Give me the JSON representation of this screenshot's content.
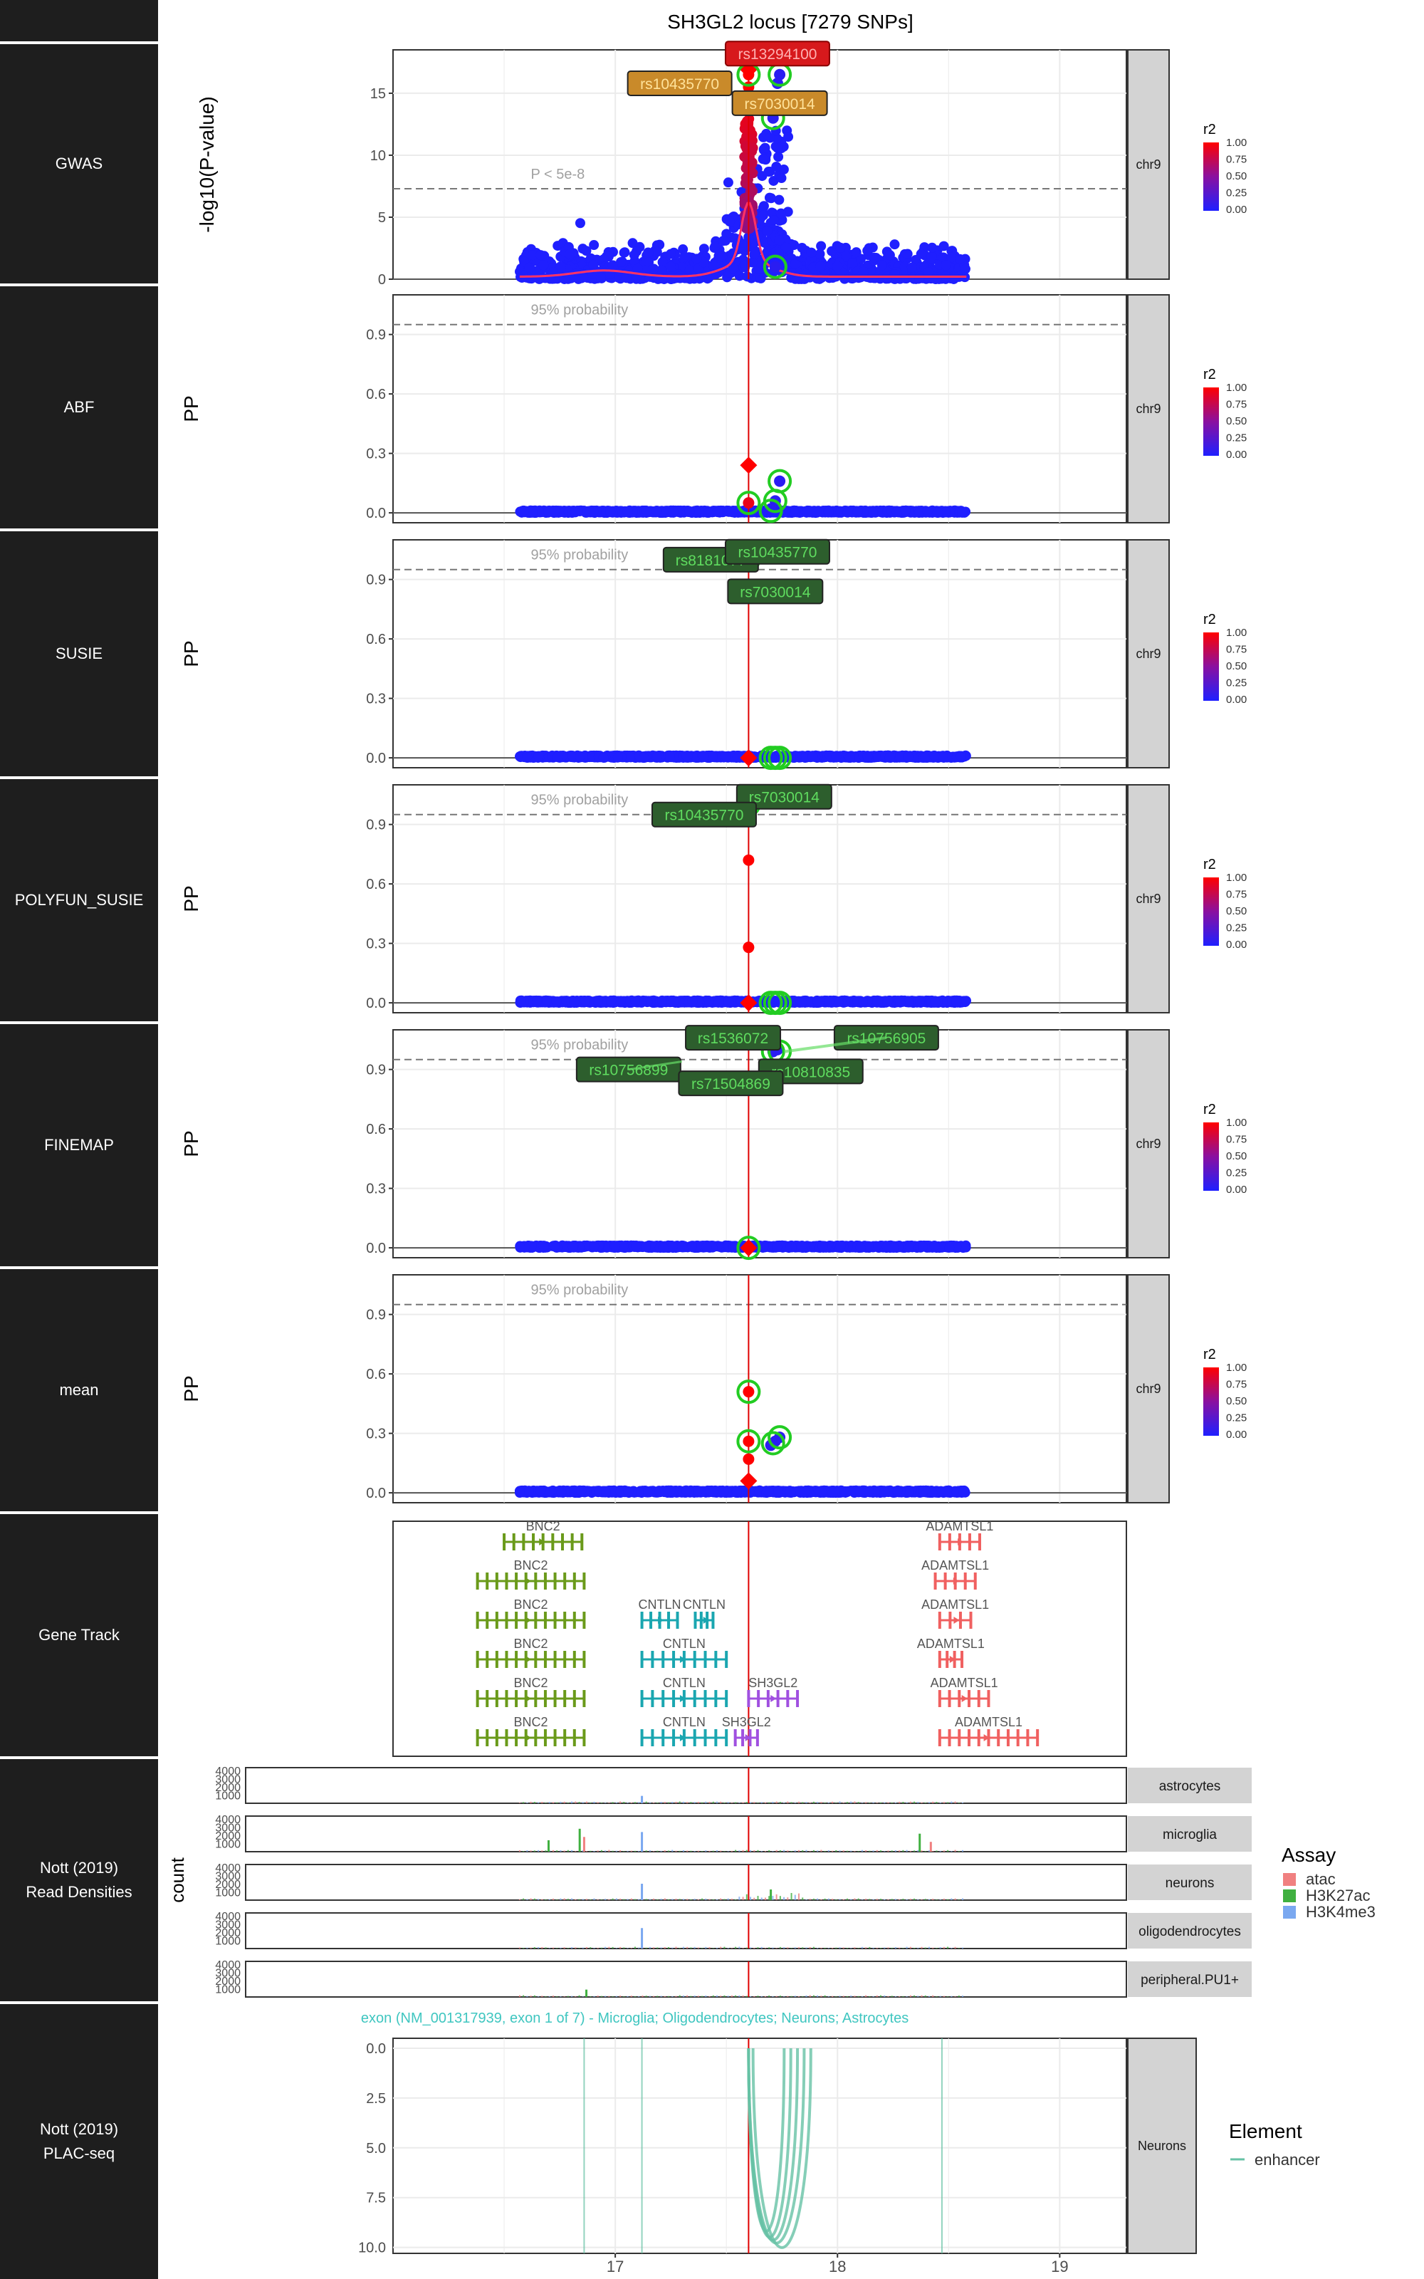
{
  "title": "SH3GL2 locus [7279 SNPs]",
  "row_labels": [
    "GWAS",
    "ABF",
    "SUSIE",
    "POLYFUN_SUSIE",
    "FINEMAP",
    "mean",
    "Gene Track",
    "Nott (2019)\nRead Densities",
    "Nott (2019)\nPLAC-seq"
  ],
  "chart_data": [
    {
      "type": "scatter",
      "panel": "GWAS",
      "strip": "chr9",
      "ylabel": "-log10(P-value)",
      "ylim": [
        0,
        18.5
      ],
      "yticks": [
        0,
        5,
        10,
        15
      ],
      "threshold": {
        "value": 7.3,
        "label": "P < 5e-8"
      },
      "legend_title": "r2",
      "legend_ticks": [
        "1.00",
        "0.75",
        "0.50",
        "0.25",
        "0.00"
      ],
      "labels": [
        {
          "text": "rs13294100",
          "x": 17.73,
          "y": 18.2,
          "color": "#d7191c"
        },
        {
          "text": "rs10435770",
          "x": 17.29,
          "y": 15.8,
          "color": "#f0a030"
        },
        {
          "text": "rs7030014",
          "x": 17.74,
          "y": 14.2,
          "color": "#f0a030"
        }
      ],
      "lead": [
        {
          "x": 17.6,
          "y": 16.5,
          "r2": 1.0
        },
        {
          "x": 17.6,
          "y": 15.5,
          "r2": 1.0
        },
        {
          "x": 17.6,
          "y": 14.5,
          "r2": 0.95
        },
        {
          "x": 17.74,
          "y": 16.5,
          "r2": 0.05
        },
        {
          "x": 17.73,
          "y": 15.8,
          "r2": 0.05
        },
        {
          "x": 17.71,
          "y": 13.0,
          "r2": 0.05
        },
        {
          "x": 17.72,
          "y": 1.0,
          "r2": 0.05
        }
      ],
      "circled": [
        [
          17.6,
          16.5
        ],
        [
          17.74,
          16.5
        ],
        [
          17.71,
          13.0
        ],
        [
          17.72,
          1.0
        ]
      ],
      "diamond": [
        17.6,
        16.9
      ]
    },
    {
      "type": "scatter",
      "panel": "ABF",
      "strip": "chr9",
      "ylabel": "PP",
      "ylim": [
        -0.05,
        1.1
      ],
      "yticks": [
        0.0,
        0.3,
        0.6,
        0.9
      ],
      "threshold": {
        "value": 0.95,
        "label": "95% probability"
      },
      "legend_title": "r2",
      "legend_ticks": [
        "1.00",
        "0.75",
        "0.50",
        "0.25",
        "0.00"
      ],
      "labels": [],
      "lead": [
        {
          "x": 17.6,
          "y": 0.05,
          "r2": 0.9
        },
        {
          "x": 17.74,
          "y": 0.16,
          "r2": 0.05
        },
        {
          "x": 17.72,
          "y": 0.06,
          "r2": 0.05
        },
        {
          "x": 17.7,
          "y": 0.02,
          "r2": 0.05
        }
      ],
      "circled": [
        [
          17.6,
          0.05
        ],
        [
          17.74,
          0.16
        ],
        [
          17.72,
          0.06
        ],
        [
          17.7,
          0.01
        ]
      ],
      "diamond": [
        17.6,
        0.24
      ]
    },
    {
      "type": "scatter",
      "panel": "SUSIE",
      "strip": "chr9",
      "ylabel": "PP",
      "ylim": [
        -0.05,
        1.1
      ],
      "yticks": [
        0.0,
        0.3,
        0.6,
        0.9
      ],
      "threshold": {
        "value": 0.95,
        "label": "95% probability"
      },
      "legend_title": "r2",
      "legend_ticks": [
        "1.00",
        "0.75",
        "0.50",
        "0.25",
        "0.00"
      ],
      "labels": [
        {
          "text": "rs8181077",
          "x": 17.43,
          "y": 1.0,
          "color": "#3c8c3c"
        },
        {
          "text": "rs10435770",
          "x": 17.73,
          "y": 1.04,
          "color": "#3c8c3c"
        },
        {
          "text": "rs7030014",
          "x": 17.72,
          "y": 0.84,
          "color": "#3c8c3c"
        }
      ],
      "lead": [
        {
          "x": 17.6,
          "y": 1.0,
          "r2": 1.0
        }
      ],
      "circled": [
        [
          17.6,
          1.0
        ],
        [
          17.7,
          0.0
        ],
        [
          17.72,
          0.0
        ],
        [
          17.74,
          0.0
        ]
      ],
      "diamond": [
        17.6,
        0.0
      ]
    },
    {
      "type": "scatter",
      "panel": "POLYFUN_SUSIE",
      "strip": "chr9",
      "ylabel": "PP",
      "ylim": [
        -0.05,
        1.1
      ],
      "yticks": [
        0.0,
        0.3,
        0.6,
        0.9
      ],
      "threshold": {
        "value": 0.95,
        "label": "95% probability"
      },
      "legend_title": "r2",
      "legend_ticks": [
        "1.00",
        "0.75",
        "0.50",
        "0.25",
        "0.00"
      ],
      "labels": [
        {
          "text": "rs7030014",
          "x": 17.76,
          "y": 1.04,
          "color": "#3c8c3c"
        },
        {
          "text": "rs10435770",
          "x": 17.4,
          "y": 0.95,
          "color": "#3c8c3c"
        }
      ],
      "lead": [
        {
          "x": 17.6,
          "y": 1.0,
          "r2": 1.0
        },
        {
          "x": 17.6,
          "y": 0.72,
          "r2": 1.0
        },
        {
          "x": 17.6,
          "y": 0.28,
          "r2": 1.0
        }
      ],
      "circled": [
        [
          17.6,
          1.0
        ],
        [
          17.7,
          0.0
        ],
        [
          17.72,
          0.0
        ],
        [
          17.74,
          0.0
        ]
      ],
      "diamond": [
        17.6,
        0.0
      ]
    },
    {
      "type": "scatter",
      "panel": "FINEMAP",
      "strip": "chr9",
      "ylabel": "PP",
      "ylim": [
        -0.05,
        1.1
      ],
      "yticks": [
        0.0,
        0.3,
        0.6,
        0.9
      ],
      "threshold": {
        "value": 0.95,
        "label": "95% probability"
      },
      "legend_title": "r2",
      "legend_ticks": [
        "1.00",
        "0.75",
        "0.50",
        "0.25",
        "0.00"
      ],
      "labels": [
        {
          "text": "rs1536072",
          "x": 17.53,
          "y": 1.06,
          "color": "#3c8c3c"
        },
        {
          "text": "rs10756905",
          "x": 18.22,
          "y": 1.06,
          "color": "#3c8c3c"
        },
        {
          "text": "rs10756899",
          "x": 17.06,
          "y": 0.9,
          "color": "#3c8c3c"
        },
        {
          "text": "rs10810835",
          "x": 17.88,
          "y": 0.89,
          "color": "#3c8c3c"
        },
        {
          "text": "rs71504869",
          "x": 17.52,
          "y": 0.83,
          "color": "#3c8c3c"
        }
      ],
      "lead": [
        {
          "x": 17.73,
          "y": 1.0,
          "r2": 0.05
        },
        {
          "x": 17.71,
          "y": 0.99,
          "r2": 0.05
        }
      ],
      "circled": [
        [
          17.71,
          0.99
        ],
        [
          17.74,
          0.99
        ],
        [
          17.6,
          0.0
        ]
      ],
      "diamond": [
        17.6,
        0.0
      ]
    },
    {
      "type": "scatter",
      "panel": "mean",
      "strip": "chr9",
      "ylabel": "PP",
      "ylim": [
        -0.05,
        1.1
      ],
      "yticks": [
        0.0,
        0.3,
        0.6,
        0.9
      ],
      "threshold": {
        "value": 0.95,
        "label": "95% probability"
      },
      "legend_title": "r2",
      "legend_ticks": [
        "1.00",
        "0.75",
        "0.50",
        "0.25",
        "0.00"
      ],
      "labels": [],
      "lead": [
        {
          "x": 17.6,
          "y": 0.51,
          "r2": 1.0
        },
        {
          "x": 17.6,
          "y": 0.26,
          "r2": 1.0
        },
        {
          "x": 17.6,
          "y": 0.17,
          "r2": 1.0
        },
        {
          "x": 17.74,
          "y": 0.28,
          "r2": 0.05
        },
        {
          "x": 17.72,
          "y": 0.26,
          "r2": 0.05
        },
        {
          "x": 17.7,
          "y": 0.24,
          "r2": 0.05
        }
      ],
      "circled": [
        [
          17.6,
          0.51
        ],
        [
          17.6,
          0.26
        ],
        [
          17.74,
          0.28
        ],
        [
          17.71,
          0.25
        ]
      ],
      "diamond": [
        17.6,
        0.06
      ]
    },
    {
      "type": "gene_track",
      "panel": "Gene Track",
      "genes": [
        {
          "name": "BNC2",
          "lane": 0,
          "start": 16.5,
          "end": 16.85,
          "color": "#6a9a1a"
        },
        {
          "name": "ADAMTSL1",
          "lane": 0,
          "start": 18.46,
          "end": 18.64,
          "color": "#f06060"
        },
        {
          "name": "BNC2",
          "lane": 1,
          "start": 16.38,
          "end": 16.86,
          "color": "#6a9a1a"
        },
        {
          "name": "ADAMTSL1",
          "lane": 1,
          "start": 18.44,
          "end": 18.62,
          "color": "#f06060"
        },
        {
          "name": "BNC2",
          "lane": 2,
          "start": 16.38,
          "end": 16.86,
          "color": "#6a9a1a"
        },
        {
          "name": "CNTLN",
          "lane": 2,
          "start": 17.12,
          "end": 17.28,
          "color": "#1aa6b0"
        },
        {
          "name": "CNTLN",
          "lane": 2,
          "start": 17.36,
          "end": 17.44,
          "color": "#1aa6b0"
        },
        {
          "name": "ADAMTSL1",
          "lane": 2,
          "start": 18.46,
          "end": 18.6,
          "color": "#f06060"
        },
        {
          "name": "BNC2",
          "lane": 3,
          "start": 16.38,
          "end": 16.86,
          "color": "#6a9a1a"
        },
        {
          "name": "CNTLN",
          "lane": 3,
          "start": 17.12,
          "end": 17.5,
          "color": "#1aa6b0"
        },
        {
          "name": "ADAMTSL1",
          "lane": 3,
          "start": 18.46,
          "end": 18.56,
          "color": "#f06060"
        },
        {
          "name": "BNC2",
          "lane": 4,
          "start": 16.38,
          "end": 16.86,
          "color": "#6a9a1a"
        },
        {
          "name": "CNTLN",
          "lane": 4,
          "start": 17.12,
          "end": 17.5,
          "color": "#1aa6b0"
        },
        {
          "name": "SH3GL2",
          "lane": 4,
          "start": 17.6,
          "end": 17.82,
          "color": "#a050e0"
        },
        {
          "name": "ADAMTSL1",
          "lane": 4,
          "start": 18.46,
          "end": 18.68,
          "color": "#f06060"
        },
        {
          "name": "BNC2",
          "lane": 5,
          "start": 16.38,
          "end": 16.86,
          "color": "#6a9a1a"
        },
        {
          "name": "CNTLN",
          "lane": 5,
          "start": 17.12,
          "end": 17.5,
          "color": "#1aa6b0"
        },
        {
          "name": "SH3GL2",
          "lane": 5,
          "start": 17.54,
          "end": 17.64,
          "color": "#a050e0"
        },
        {
          "name": "ADAMTSL1",
          "lane": 5,
          "start": 18.46,
          "end": 18.9,
          "color": "#f06060"
        }
      ]
    },
    {
      "type": "area",
      "panel": "Nott (2019) Read Densities",
      "ylabel": "count",
      "yticks": [
        "1000",
        "2000",
        "3000",
        "4000"
      ],
      "cell_types": [
        "astrocytes",
        "microglia",
        "neurons",
        "oligodendrocytes",
        "peripheral.PU1+"
      ],
      "legend_title": "Assay",
      "assays": [
        {
          "name": "atac",
          "color": "#f08080"
        },
        {
          "name": "H3K27ac",
          "color": "#40b040"
        },
        {
          "name": "H3K4me3",
          "color": "#7aa8f0"
        }
      ],
      "peaks": [
        {
          "cell": "astrocytes",
          "assay": "H3K4me3",
          "x": 17.12,
          "v": 900
        },
        {
          "cell": "microglia",
          "assay": "atac",
          "x": 16.86,
          "v": 1800
        },
        {
          "cell": "microglia",
          "assay": "H3K27ac",
          "x": 16.7,
          "v": 1400
        },
        {
          "cell": "microglia",
          "assay": "H3K27ac",
          "x": 16.84,
          "v": 2800
        },
        {
          "cell": "microglia",
          "assay": "H3K4me3",
          "x": 17.12,
          "v": 2400
        },
        {
          "cell": "microglia",
          "assay": "H3K27ac",
          "x": 18.37,
          "v": 2200
        },
        {
          "cell": "microglia",
          "assay": "atac",
          "x": 18.42,
          "v": 1200
        },
        {
          "cell": "neurons",
          "assay": "H3K4me3",
          "x": 17.12,
          "v": 2000
        },
        {
          "cell": "neurons",
          "assay": "H3K27ac",
          "x": 17.7,
          "v": 1300
        },
        {
          "cell": "oligodendrocytes",
          "assay": "H3K4me3",
          "x": 17.12,
          "v": 2500
        },
        {
          "cell": "peripheral.PU1+",
          "assay": "H3K27ac",
          "x": 16.87,
          "v": 900
        }
      ]
    },
    {
      "type": "line",
      "panel": "Nott (2019) PLAC-seq",
      "strip": "Neurons",
      "ylim": [
        10.3,
        -0.5
      ],
      "yticks": [
        0.0,
        2.5,
        5.0,
        7.5,
        10.0
      ],
      "annotation": "exon (NM_001317939, exon 1 of 7) - Microglia; Oligodendrocytes; Neurons; Astrocytes",
      "legend_title": "Element",
      "legend_item": "enhancer",
      "color": "#66c2a5",
      "vlines": [
        16.86,
        17.12,
        18.47
      ],
      "arcs": [
        [
          17.6,
          17.76,
          10.1
        ],
        [
          17.6,
          17.79,
          10.5
        ],
        [
          17.6,
          17.82,
          10.7
        ],
        [
          17.6,
          17.85,
          10.9
        ],
        [
          17.62,
          17.88,
          11.2
        ]
      ]
    }
  ],
  "x_axis": {
    "range": [
      16,
      19.3
    ],
    "ticks": [
      "17",
      "18",
      "19"
    ]
  },
  "colors": {
    "lead_red": "#ff0000",
    "low_blue": "#1f1fff",
    "highlight_green": "#22cc22",
    "gwas_line": "#ff3366",
    "grid": "#ebebeb",
    "strip": "#d3d3d3"
  }
}
